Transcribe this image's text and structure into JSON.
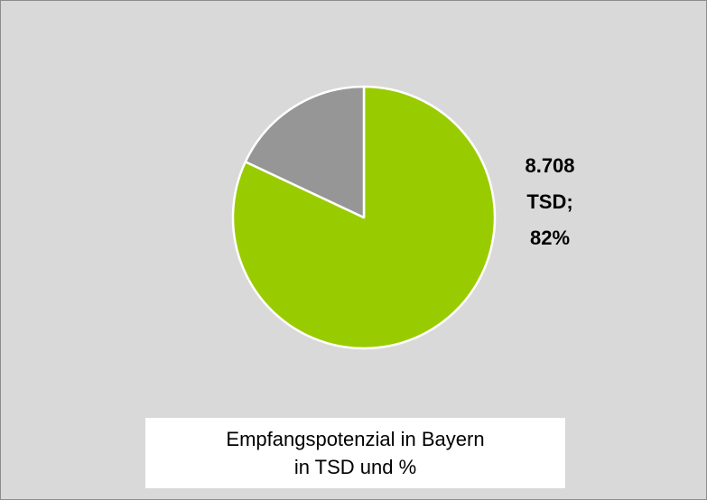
{
  "chart_data": {
    "type": "pie",
    "values": [
      82,
      18
    ],
    "colors": [
      "#99cc00",
      "#969696"
    ],
    "value_labels": [
      "8.708 TSD; 82%",
      null
    ],
    "title": [
      "Empfangspotenzial in Bayern",
      "in TSD und %"
    ]
  }
}
